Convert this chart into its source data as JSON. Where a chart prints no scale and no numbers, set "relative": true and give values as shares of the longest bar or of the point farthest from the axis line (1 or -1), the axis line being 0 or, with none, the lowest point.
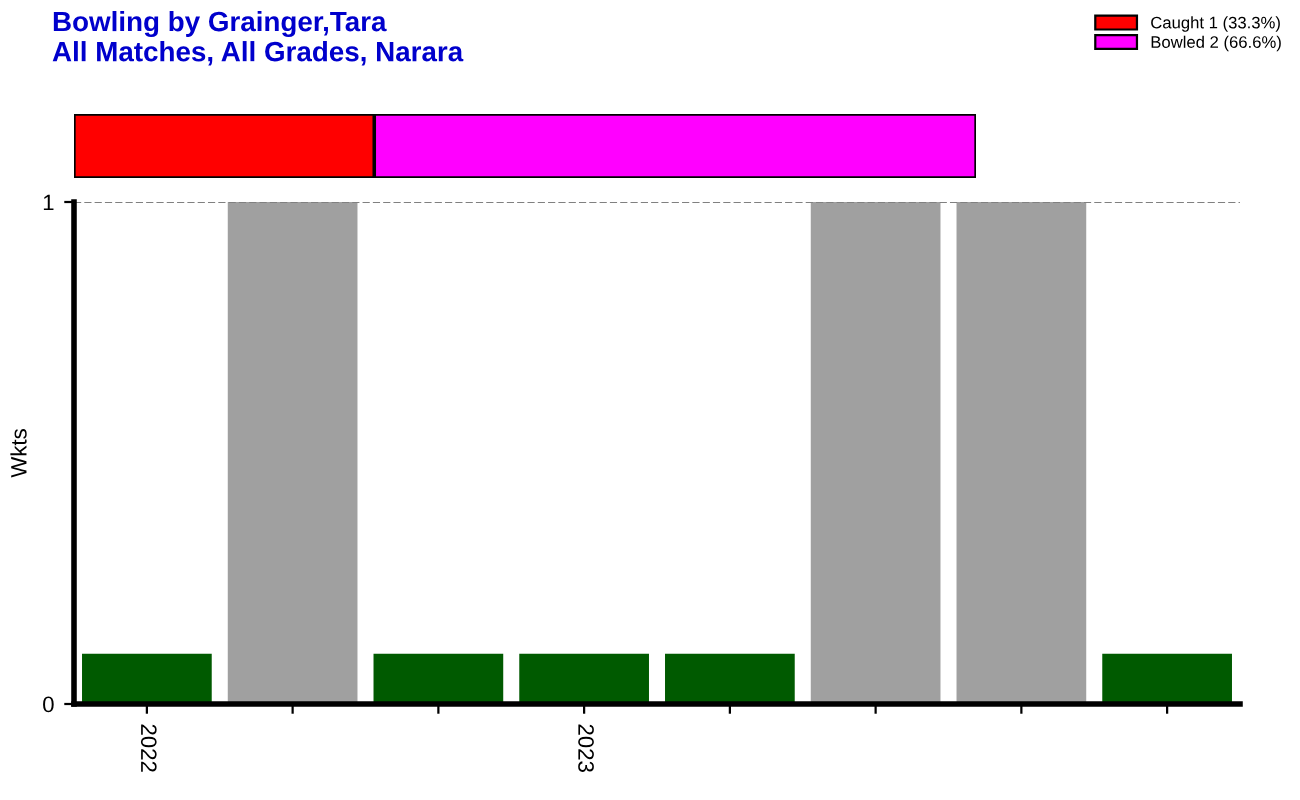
{
  "chart_data": [
    {
      "type": "bar",
      "orientation": "horizontal",
      "stacked": true,
      "title": "Bowling by Grainger,Tara",
      "subtitle": "All Matches, All Grades, Narara",
      "legend": "top right",
      "relative": true,
      "categories": [
        null
      ],
      "series": [
        {
          "name": "Caught 1 (33.3%)",
          "color": "#ff0000",
          "values": [
            0.333
          ]
        },
        {
          "name": "Bowled 2 (66.6%)",
          "color": "#ff00ff",
          "values": [
            0.667
          ]
        }
      ]
    },
    {
      "type": "bar",
      "ylabel": "Wkts",
      "categories": [
        "2022",
        null,
        null,
        "2023",
        null,
        null,
        null,
        null
      ],
      "values": [
        0.1,
        1,
        0.1,
        0.1,
        0.1,
        1,
        1,
        0.1
      ],
      "colors": [
        "#005a00",
        "#a0a0a0",
        "#005a00",
        "#005a00",
        "#005a00",
        "#a0a0a0",
        "#a0a0a0",
        "#005a00"
      ],
      "ylim": [
        0,
        1
      ],
      "yticks": [
        0,
        1
      ],
      "ref_lines": [
        {
          "axis": "y",
          "value": 1,
          "color": "#808080",
          "line_style": "dashed"
        }
      ]
    }
  ]
}
